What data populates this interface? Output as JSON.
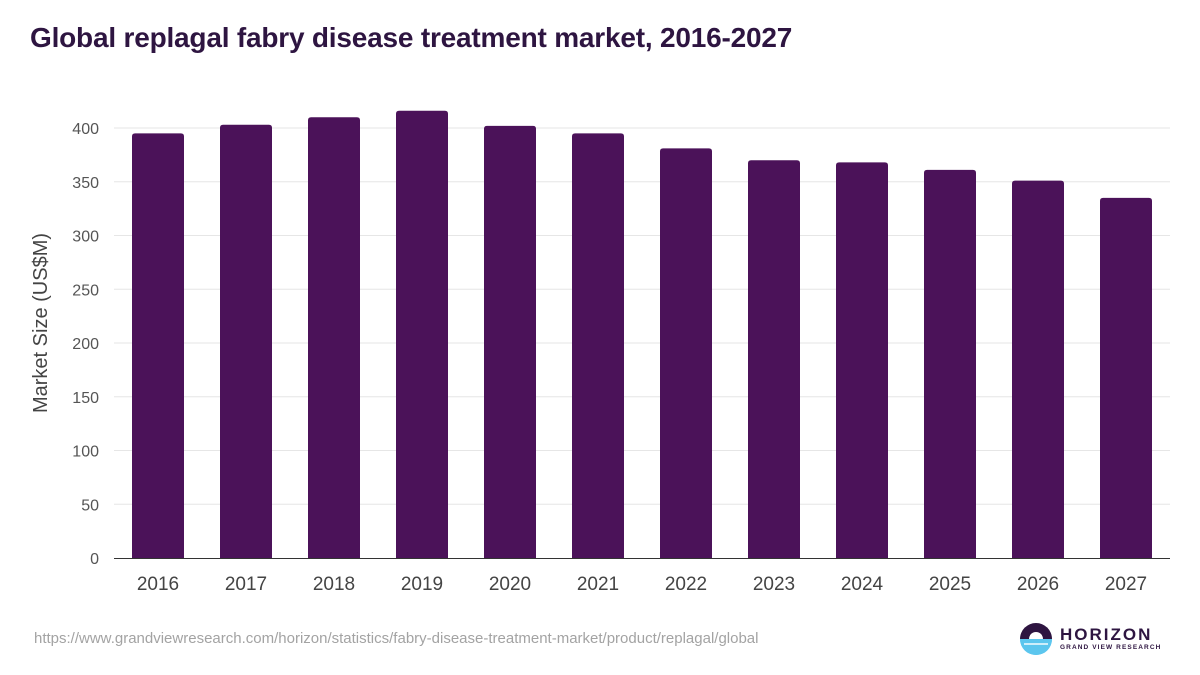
{
  "chart_data": {
    "type": "bar",
    "title": "Global replagal fabry disease treatment market, 2016-2027",
    "xlabel": "",
    "ylabel": "Market Size (US$M)",
    "categories": [
      "2016",
      "2017",
      "2018",
      "2019",
      "2020",
      "2021",
      "2022",
      "2023",
      "2024",
      "2025",
      "2026",
      "2027"
    ],
    "values": [
      395,
      403,
      410,
      416,
      402,
      395,
      381,
      370,
      368,
      361,
      351,
      335
    ],
    "ylim": [
      0,
      400
    ],
    "yticks": [
      0,
      50,
      100,
      150,
      200,
      250,
      300,
      350,
      400
    ],
    "grid": true,
    "bar_color": "#4b1259"
  },
  "footer": {
    "source_url": "https://www.grandviewresearch.com/horizon/statistics/fabry-disease-treatment-market/product/replagal/global"
  },
  "logo": {
    "name": "HORIZON",
    "subtitle": "GRAND VIEW RESEARCH",
    "colors": {
      "dark": "#2e1541",
      "light": "#5cc6ee"
    }
  }
}
